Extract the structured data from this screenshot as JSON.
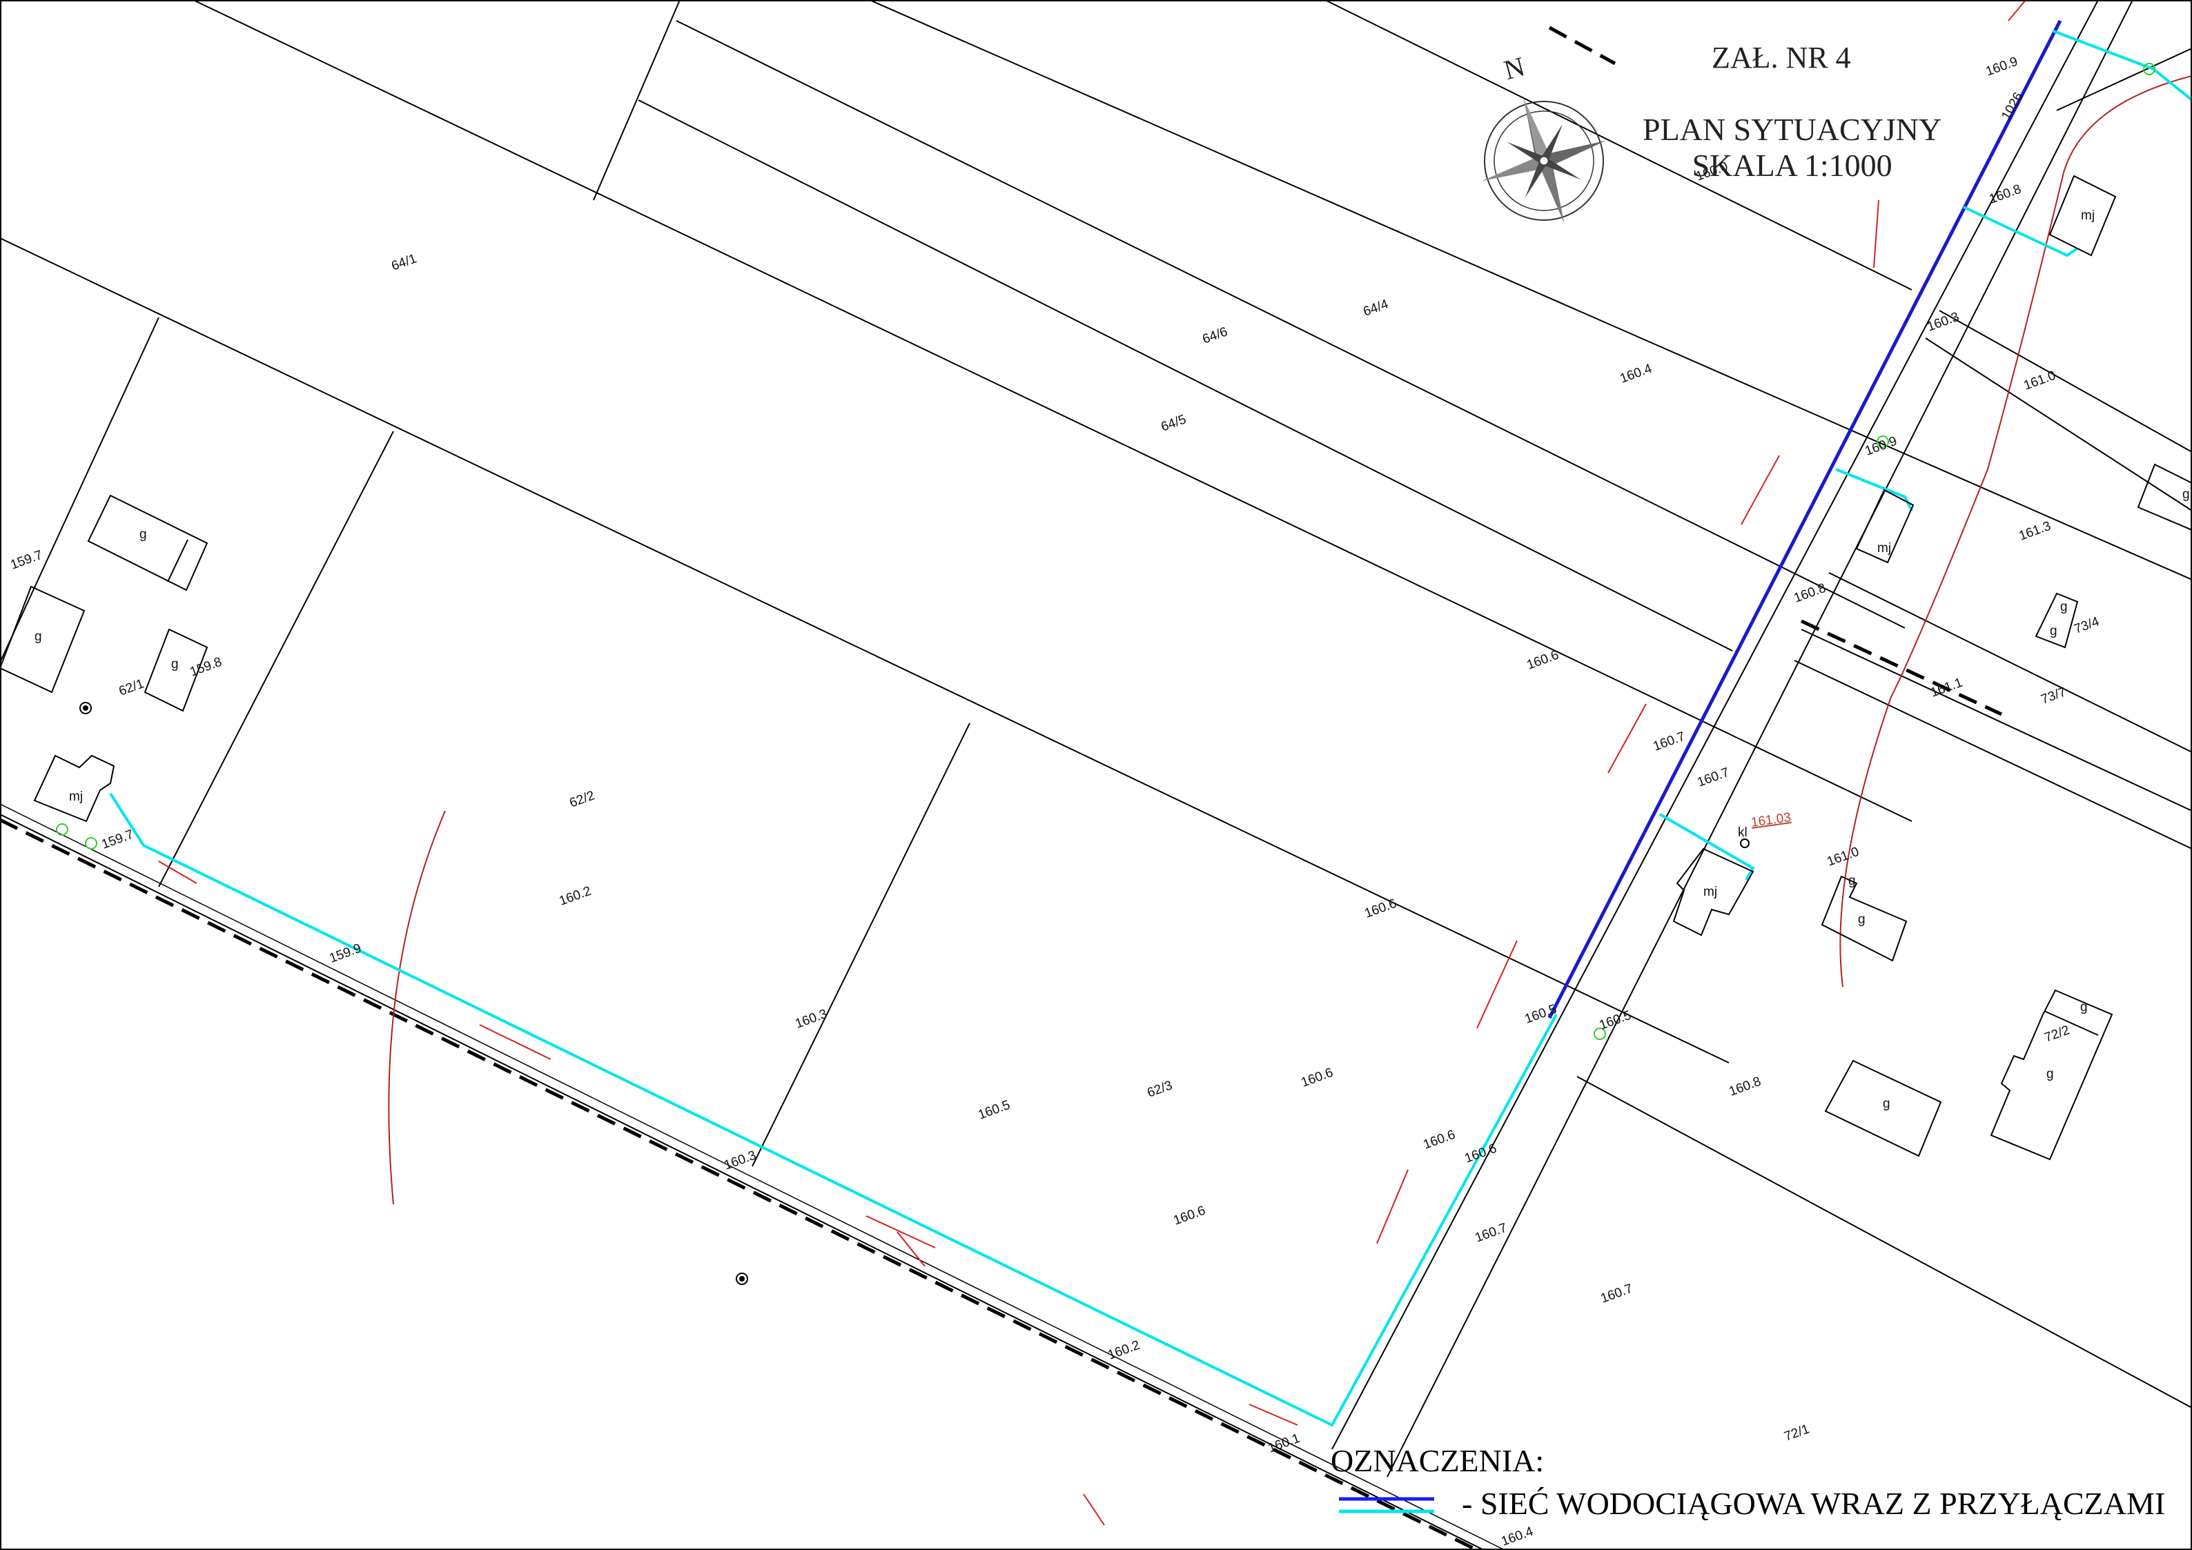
{
  "header": {
    "attachment": "ZAŁ. NR 4",
    "plan_title": "PLAN SYTUACYJNY",
    "scale": "SKALA 1:1000"
  },
  "compass": {
    "north_label": "N"
  },
  "legend": {
    "title": "OZNACZENIA:",
    "entries": [
      {
        "text": "- SIEĆ WODOCIĄGOWA WRAZ Z PRZYŁĄCZAMI",
        "colors": [
          "#1a1aff",
          "#00e5ee"
        ]
      }
    ]
  },
  "colors": {
    "water_main": "#1a1acc",
    "water_connection": "#00e5ee",
    "parcel_line": "#000000",
    "gas_line": "#b22222",
    "arrows": "#d62020",
    "trees": "#33cc33"
  },
  "parcels": [
    "64/1",
    "64/6",
    "64/4",
    "64/5",
    "62/2",
    "62/1",
    "62/3",
    "73/4",
    "73/7",
    "72/2",
    "72/1",
    "1026"
  ],
  "elevations": [
    "160.9",
    "160.0",
    "160.8",
    "160.3",
    "160.4",
    "161.0",
    "160.9",
    "161.3",
    "160.8",
    "161.1",
    "160.6",
    "160.7",
    "160.7",
    "159.7",
    "159.8",
    "159.7",
    "159.9",
    "160.2",
    "160.3",
    "160.6",
    "160.5",
    "160.6",
    "160.6",
    "160.6",
    "160.5",
    "160.6",
    "160.5",
    "160.8",
    "160.7",
    "160.7",
    "160.3",
    "160.2",
    "160.4",
    "160.1",
    "161.0"
  ],
  "building_labels": [
    "g",
    "mj",
    "kl"
  ],
  "spot_height_red": "161.03"
}
